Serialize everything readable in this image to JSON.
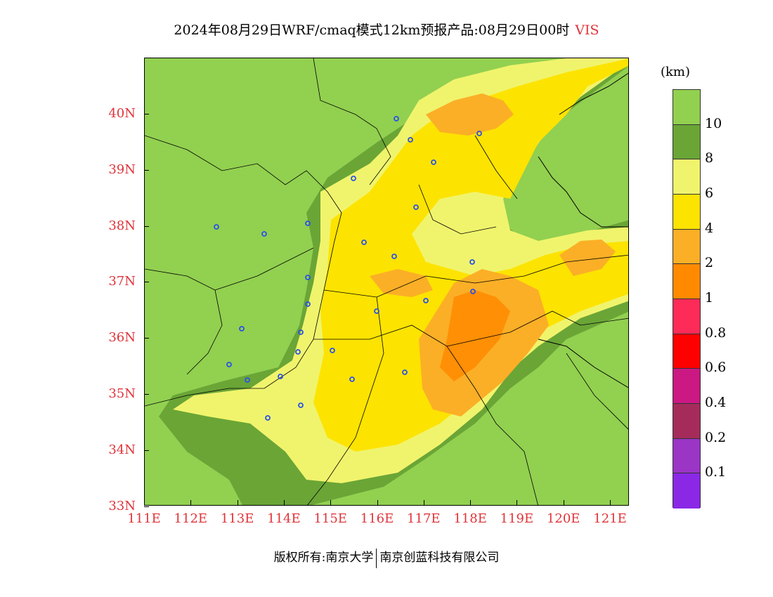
{
  "title": {
    "main": "2024年08月29日WRF/cmaq模式12km预报产品:08月29日00时",
    "variable": "VIS"
  },
  "map": {
    "y_ticks": [
      "40N",
      "39N",
      "38N",
      "37N",
      "36N",
      "35N",
      "34N",
      "33N"
    ],
    "x_ticks": [
      "111E",
      "112E",
      "113E",
      "114E",
      "115E",
      "116E",
      "117E",
      "118E",
      "119E",
      "120E",
      "121E"
    ]
  },
  "colorbar": {
    "unit": "(km)",
    "labels": [
      "10",
      "8",
      "6",
      "4",
      "2",
      "1",
      "0.8",
      "0.6",
      "0.4",
      "0.2",
      "0.1"
    ],
    "colors": [
      "#92d050",
      "#6aa536",
      "#f0f46c",
      "#fde300",
      "#fbaf26",
      "#ff8a00",
      "#fc2b58",
      "#ff0000",
      "#cb1882",
      "#a52c5a",
      "#9a35c6",
      "#8b28e6"
    ]
  },
  "footer": {
    "left": "版权所有:南京大学",
    "right": "南京创蓝科技有限公司"
  }
}
